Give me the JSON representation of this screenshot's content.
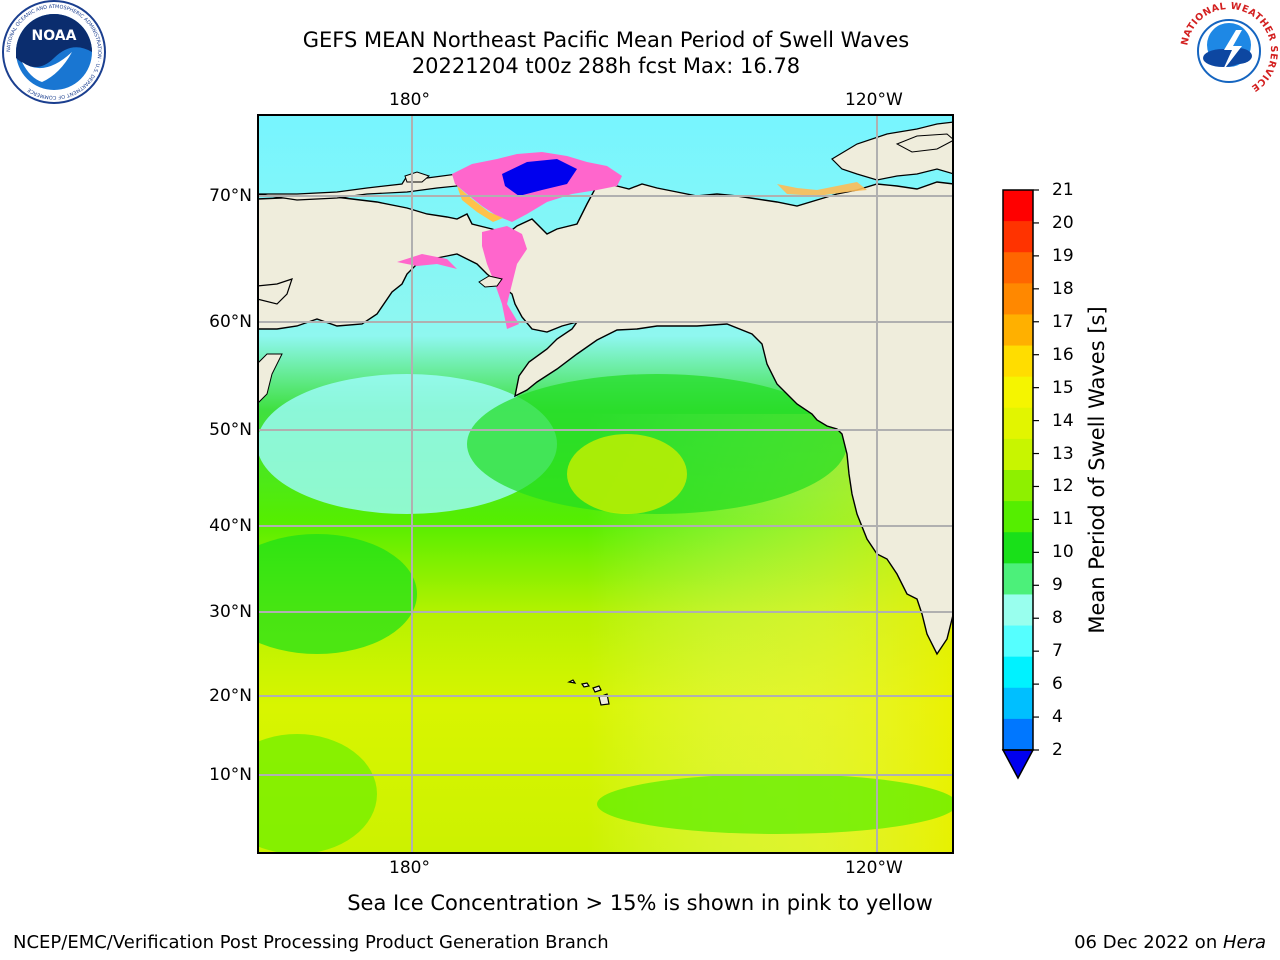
{
  "title": {
    "line1": "GEFS MEAN Northeast Pacific Mean Period of Swell Waves",
    "line2": "20221204 t00z 288h fcst   Max: 16.78"
  },
  "logos": {
    "left": {
      "text": "NOAA",
      "ring_text": "NATIONAL OCEANIC AND ATMOSPHERIC ADMINISTRATION · U.S. DEPARTMENT OF COMMERCE",
      "icon": "noaa-logo"
    },
    "right": {
      "ring_text": "NATIONAL WEATHER SERVICE",
      "icon": "nws-logo"
    }
  },
  "map": {
    "lon_labels_top": [
      "180°",
      "120°W"
    ],
    "lon_labels_bottom": [
      "180°",
      "120°W"
    ],
    "lat_labels": [
      "70°N",
      "60°N",
      "50°N",
      "40°N",
      "30°N",
      "20°N",
      "10°N"
    ],
    "grid": true,
    "colors": {
      "land": "#efeddc",
      "coast": "#000000",
      "grid": "#b0b0b0",
      "sea_ice_low": "#ff33cc",
      "sea_ice_high": "#ffd24a"
    }
  },
  "colorbar": {
    "title": "Mean Period of Swell Waves [s]",
    "ticks": [
      "21",
      "20",
      "19",
      "18",
      "17",
      "16",
      "15",
      "14",
      "13",
      "12",
      "11",
      "10",
      "9",
      "8",
      "7",
      "6",
      "4",
      "2"
    ],
    "colors": [
      "#ff0000",
      "#ff3300",
      "#ff6600",
      "#ff8800",
      "#ffb000",
      "#ffdd00",
      "#f5f500",
      "#e2f500",
      "#c8f500",
      "#8ef000",
      "#55ee00",
      "#19e019",
      "#4cf07a",
      "#99ffee",
      "#55ffff",
      "#00f2ff",
      "#00bfff",
      "#0077ff"
    ],
    "extend_color": "#0000ee"
  },
  "note": "Sea Ice Concentration > 15% is shown in pink to yellow",
  "footer": {
    "left": "NCEP/EMC/Verification Post Processing Product Generation Branch",
    "right_date": "06 Dec 2022 on ",
    "right_host": "Hera"
  }
}
